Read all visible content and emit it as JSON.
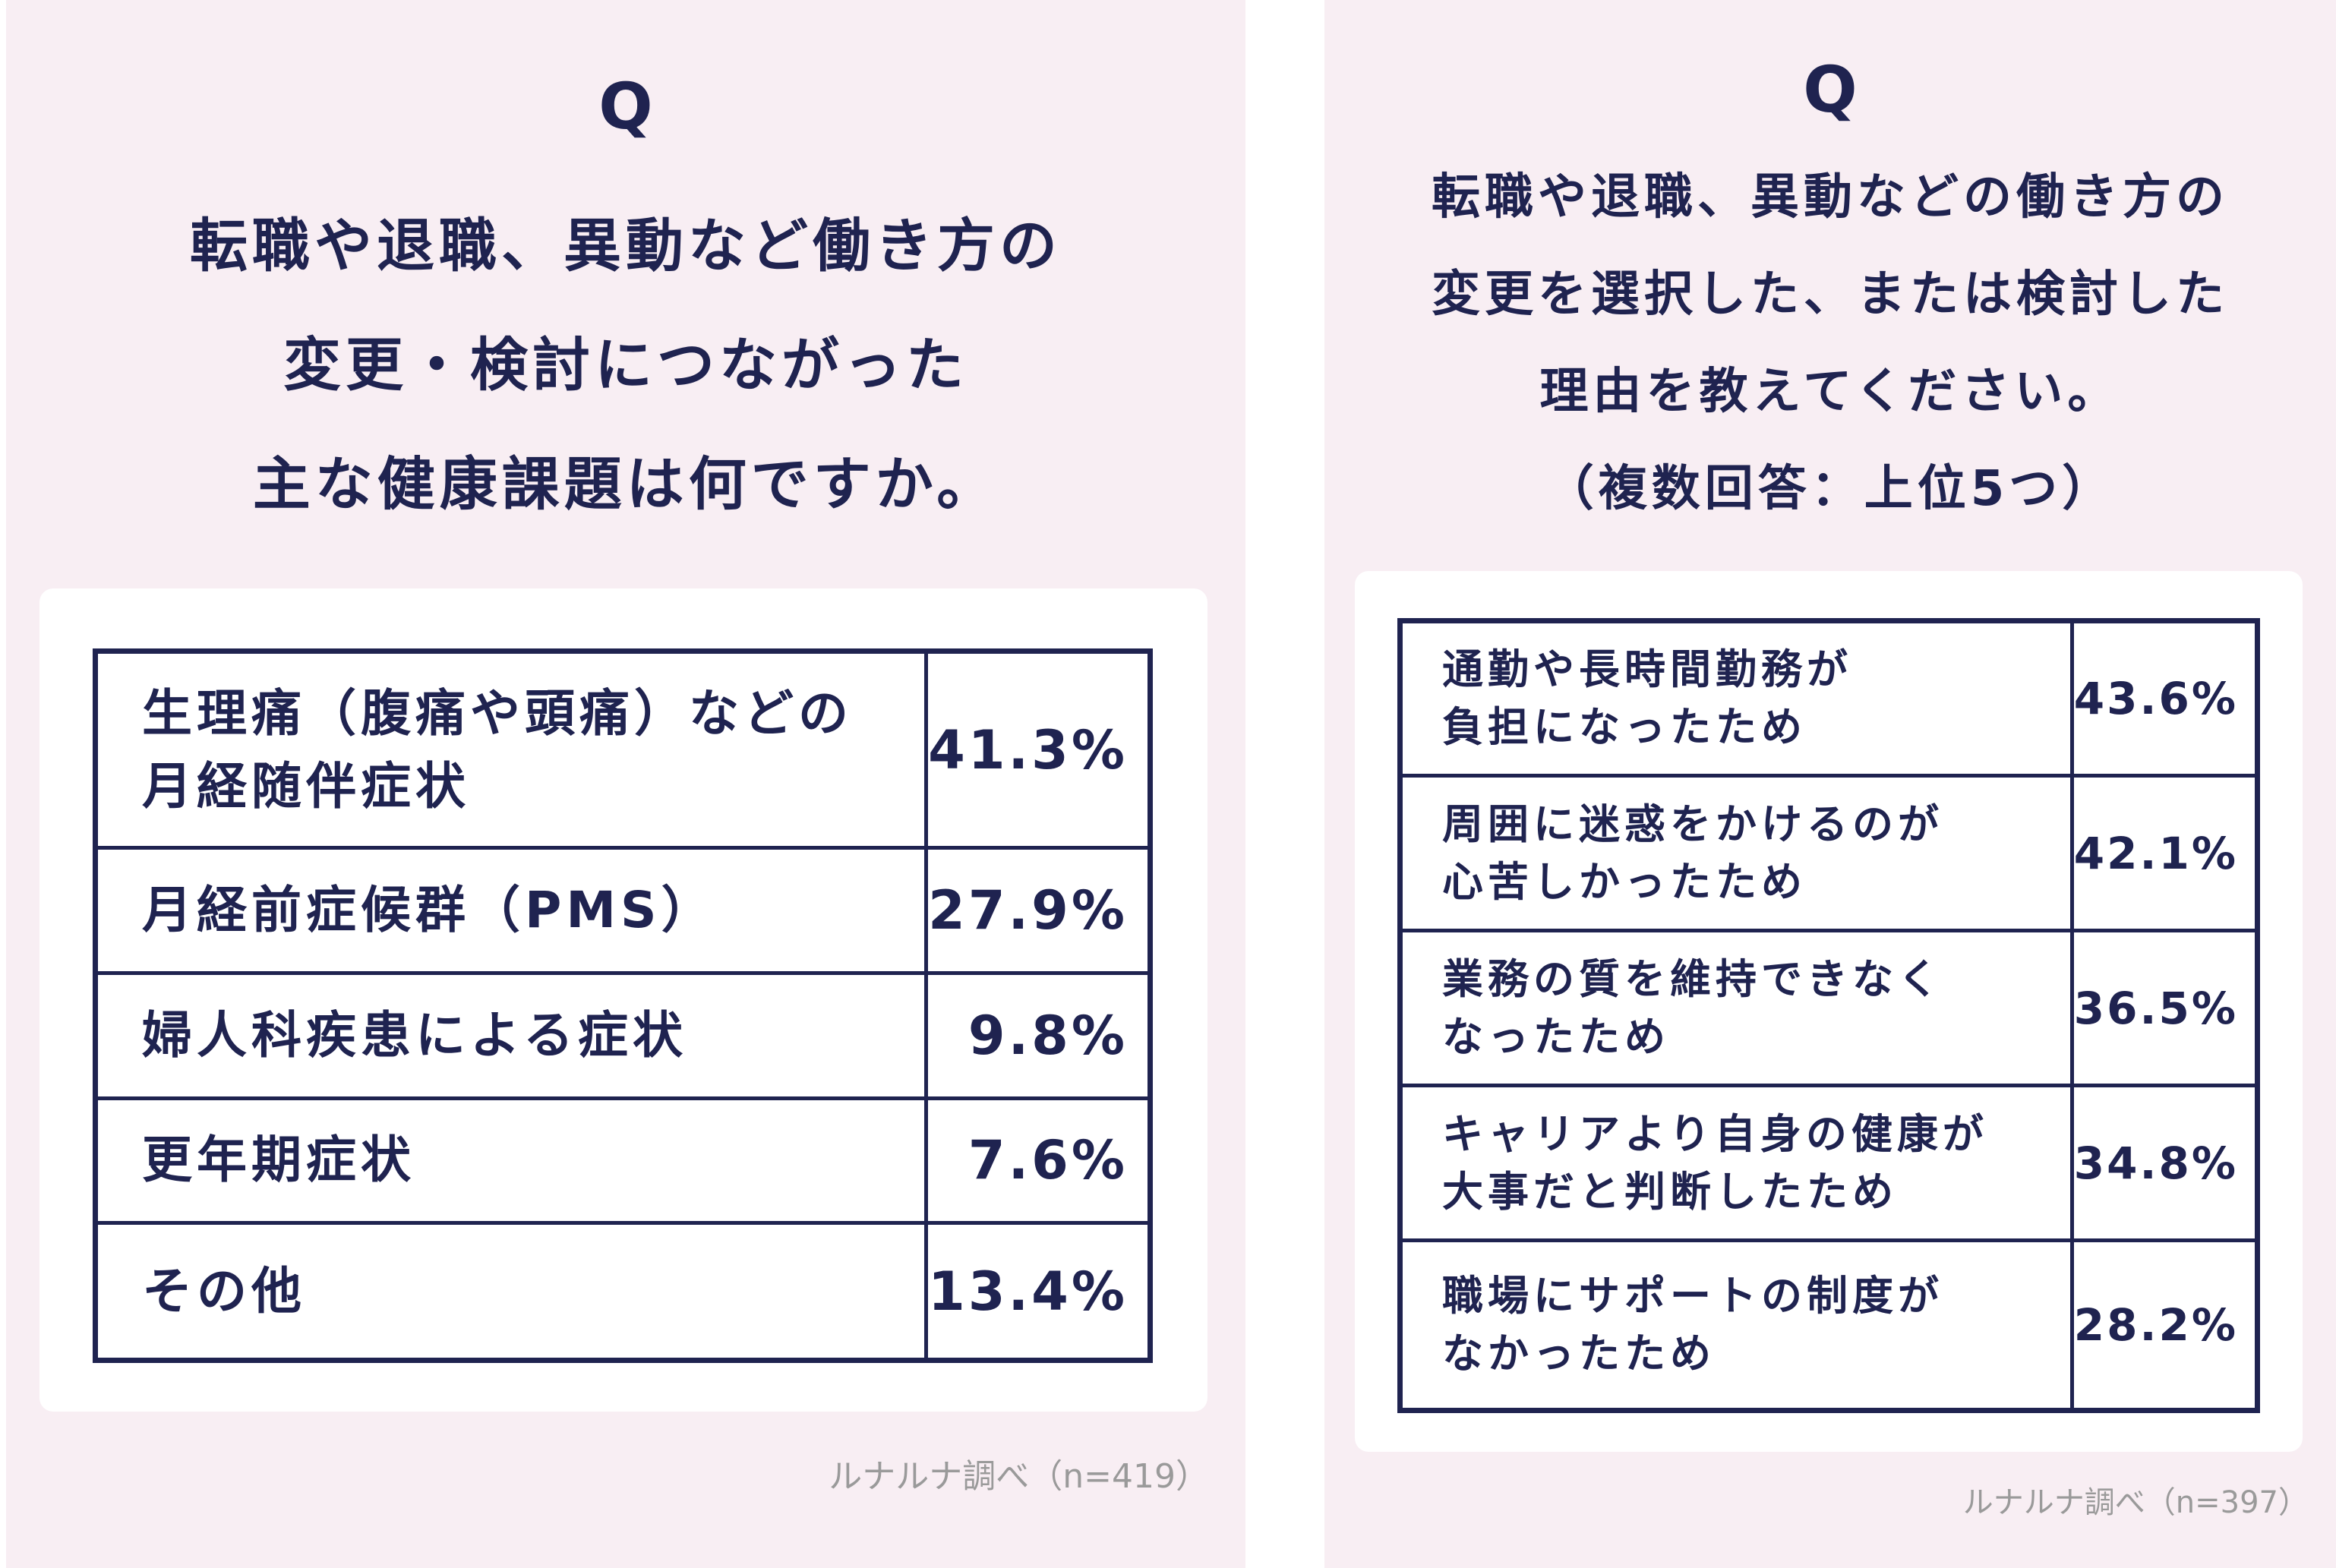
{
  "left": {
    "q_mark": "Q",
    "question_lines": [
      "転職や退職、異動など働き方の",
      "変更・検討につながった",
      "主な健康課題は何ですか。"
    ],
    "source": "ルナルナ調べ（n=419）"
  },
  "right": {
    "q_mark": "Q",
    "question_lines": [
      "転職や退職、異動などの働き方の",
      "変更を選択した、または検討した",
      "理由を教えてください。",
      "（複数回答：上位5つ）"
    ],
    "source": "ルナルナ調べ（n=397）"
  },
  "chart_data": [
    {
      "type": "table",
      "question": "転職や退職、異動など働き方の変更・検討につながった主な健康課題は何ですか。",
      "rows": [
        {
          "label_lines": [
            "生理痛（腹痛や頭痛）などの",
            "月経随伴症状"
          ],
          "value_text": "41.3%",
          "value": 41.3
        },
        {
          "label_lines": [
            "月経前症候群（PMS）"
          ],
          "value_text": "27.9%",
          "value": 27.9
        },
        {
          "label_lines": [
            "婦人科疾患による症状"
          ],
          "value_text": "9.8%",
          "value": 9.8
        },
        {
          "label_lines": [
            "更年期症状"
          ],
          "value_text": "7.6%",
          "value": 7.6
        },
        {
          "label_lines": [
            "その他"
          ],
          "value_text": "13.4%",
          "value": 13.4
        }
      ],
      "source": "ルナルナ調べ（n=419）"
    },
    {
      "type": "table",
      "question": "転職や退職、異動などの働き方の変更を選択した、または検討した理由を教えてください。（複数回答：上位5つ）",
      "rows": [
        {
          "label_lines": [
            "通勤や長時間勤務が",
            "負担になったため"
          ],
          "value_text": "43.6%",
          "value": 43.6
        },
        {
          "label_lines": [
            "周囲に迷惑をかけるのが",
            "心苦しかったため"
          ],
          "value_text": "42.1%",
          "value": 42.1
        },
        {
          "label_lines": [
            "業務の質を維持できなく",
            "なったため"
          ],
          "value_text": "36.5%",
          "value": 36.5
        },
        {
          "label_lines": [
            "キャリアより自身の健康が",
            "大事だと判断したため"
          ],
          "value_text": "34.8%",
          "value": 34.8
        },
        {
          "label_lines": [
            "職場にサポートの制度が",
            "なかったため"
          ],
          "value_text": "28.2%",
          "value": 28.2
        }
      ],
      "source": "ルナルナ調べ（n=397）"
    }
  ]
}
